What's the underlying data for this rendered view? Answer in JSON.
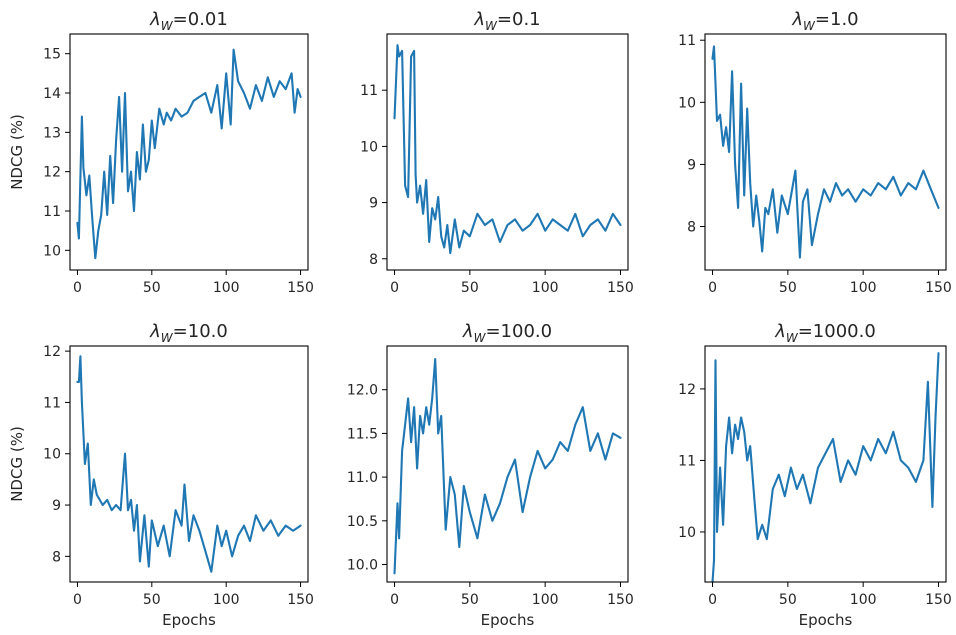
{
  "colors": {
    "line": "#1f77b4"
  },
  "chart_data": [
    {
      "type": "line",
      "title_prefix": "λ",
      "title_sub": "W",
      "title_value": "=0.01",
      "xlabel": "",
      "ylabel": "NDCG (%)",
      "xlim": [
        -5,
        155
      ],
      "ylim": [
        9.5,
        15.5
      ],
      "xticks": [
        "0",
        "50",
        "100",
        "150"
      ],
      "yticks": [
        "10",
        "11",
        "12",
        "13",
        "14",
        "15"
      ],
      "series": [
        {
          "x": [
            0,
            1,
            3,
            4,
            6,
            8,
            10,
            12,
            14,
            16,
            18,
            20,
            22,
            24,
            26,
            28,
            30,
            32,
            34,
            36,
            38,
            40,
            42,
            44,
            46,
            48,
            50,
            52,
            55,
            58,
            60,
            63,
            66,
            70,
            74,
            78,
            82,
            86,
            90,
            94,
            97,
            100,
            103,
            105,
            108,
            112,
            116,
            120,
            124,
            128,
            132,
            136,
            140,
            144,
            146,
            148,
            150
          ],
          "y": [
            10.7,
            10.3,
            13.4,
            12.1,
            11.4,
            11.9,
            10.8,
            9.8,
            10.5,
            10.9,
            12.0,
            10.9,
            12.4,
            11.2,
            12.8,
            13.9,
            12.0,
            14.0,
            11.5,
            12.0,
            11.0,
            12.5,
            11.8,
            13.2,
            12.0,
            12.3,
            13.3,
            12.6,
            13.6,
            13.2,
            13.5,
            13.3,
            13.6,
            13.4,
            13.5,
            13.8,
            13.9,
            14.0,
            13.5,
            14.2,
            13.1,
            14.5,
            13.2,
            15.1,
            14.3,
            14.0,
            13.6,
            14.2,
            13.8,
            14.4,
            13.9,
            14.3,
            14.1,
            14.5,
            13.5,
            14.1,
            13.9
          ]
        }
      ]
    },
    {
      "type": "line",
      "title_prefix": "λ",
      "title_sub": "W",
      "title_value": "=0.1",
      "xlabel": "",
      "ylabel": "",
      "xlim": [
        -5,
        155
      ],
      "ylim": [
        7.8,
        12.0
      ],
      "xticks": [
        "0",
        "50",
        "100",
        "150"
      ],
      "yticks": [
        "8",
        "9",
        "10",
        "11"
      ],
      "series": [
        {
          "x": [
            0,
            2,
            3,
            5,
            7,
            9,
            11,
            13,
            14,
            15,
            17,
            19,
            21,
            23,
            25,
            27,
            29,
            31,
            33,
            35,
            37,
            40,
            43,
            46,
            50,
            55,
            60,
            65,
            70,
            75,
            80,
            85,
            90,
            95,
            100,
            105,
            110,
            115,
            120,
            125,
            130,
            135,
            140,
            145,
            150
          ],
          "y": [
            10.5,
            11.8,
            11.6,
            11.7,
            9.3,
            9.1,
            11.6,
            11.7,
            9.5,
            9.0,
            9.3,
            8.8,
            9.4,
            8.3,
            8.9,
            8.7,
            9.1,
            8.4,
            8.2,
            8.6,
            8.1,
            8.7,
            8.2,
            8.5,
            8.4,
            8.8,
            8.6,
            8.7,
            8.3,
            8.6,
            8.7,
            8.5,
            8.6,
            8.8,
            8.5,
            8.7,
            8.6,
            8.5,
            8.8,
            8.4,
            8.6,
            8.7,
            8.5,
            8.8,
            8.6
          ]
        }
      ]
    },
    {
      "type": "line",
      "title_prefix": "λ",
      "title_sub": "W",
      "title_value": "=1.0",
      "xlabel": "",
      "ylabel": "",
      "xlim": [
        -5,
        155
      ],
      "ylim": [
        7.3,
        11.1
      ],
      "xticks": [
        "0",
        "50",
        "100",
        "150"
      ],
      "yticks": [
        "8",
        "9",
        "10",
        "11"
      ],
      "series": [
        {
          "x": [
            0,
            1,
            3,
            5,
            7,
            9,
            11,
            13,
            15,
            17,
            19,
            21,
            23,
            25,
            27,
            29,
            31,
            33,
            35,
            37,
            40,
            43,
            46,
            50,
            55,
            58,
            60,
            63,
            66,
            70,
            74,
            78,
            82,
            86,
            90,
            95,
            100,
            105,
            110,
            115,
            120,
            125,
            130,
            135,
            140,
            145,
            150
          ],
          "y": [
            10.7,
            10.9,
            9.7,
            9.8,
            9.3,
            9.6,
            9.2,
            10.5,
            9.0,
            8.3,
            10.3,
            8.5,
            9.9,
            8.7,
            8.0,
            8.5,
            8.1,
            7.6,
            8.3,
            8.2,
            8.6,
            7.9,
            8.5,
            8.2,
            8.9,
            7.5,
            8.4,
            8.6,
            7.7,
            8.2,
            8.6,
            8.4,
            8.7,
            8.5,
            8.6,
            8.4,
            8.6,
            8.5,
            8.7,
            8.6,
            8.8,
            8.5,
            8.7,
            8.6,
            8.9,
            8.6,
            8.3
          ]
        }
      ]
    },
    {
      "type": "line",
      "title_prefix": "λ",
      "title_sub": "W",
      "title_value": "=10.0",
      "xlabel": "Epochs",
      "ylabel": "NDCG (%)",
      "xlim": [
        -5,
        155
      ],
      "ylim": [
        7.5,
        12.1
      ],
      "xticks": [
        "0",
        "50",
        "100",
        "150"
      ],
      "yticks": [
        "8",
        "9",
        "10",
        "11",
        "12"
      ],
      "series": [
        {
          "x": [
            0,
            1,
            2,
            3,
            5,
            7,
            9,
            11,
            13,
            15,
            17,
            20,
            23,
            26,
            29,
            32,
            34,
            36,
            38,
            40,
            42,
            45,
            48,
            50,
            54,
            58,
            62,
            66,
            70,
            72,
            75,
            78,
            82,
            86,
            90,
            94,
            97,
            100,
            104,
            108,
            112,
            116,
            120,
            125,
            130,
            135,
            140,
            145,
            150
          ],
          "y": [
            11.4,
            11.4,
            11.9,
            11.0,
            9.8,
            10.2,
            9.0,
            9.5,
            9.2,
            9.1,
            9.0,
            9.1,
            8.9,
            9.0,
            8.9,
            10.0,
            8.9,
            9.1,
            8.5,
            9.0,
            7.9,
            8.8,
            7.8,
            8.7,
            8.2,
            8.6,
            8.0,
            8.9,
            8.6,
            9.4,
            8.3,
            8.8,
            8.5,
            8.1,
            7.7,
            8.6,
            8.2,
            8.5,
            8.0,
            8.4,
            8.6,
            8.3,
            8.8,
            8.5,
            8.7,
            8.4,
            8.6,
            8.5,
            8.6
          ]
        }
      ]
    },
    {
      "type": "line",
      "title_prefix": "λ",
      "title_sub": "W",
      "title_value": "=100.0",
      "xlabel": "Epochs",
      "ylabel": "",
      "xlim": [
        -5,
        155
      ],
      "ylim": [
        9.8,
        12.5
      ],
      "xticks": [
        "0",
        "50",
        "100",
        "150"
      ],
      "yticks": [
        "10.0",
        "10.5",
        "11.0",
        "11.5",
        "12.0"
      ],
      "series": [
        {
          "x": [
            0,
            2,
            3,
            5,
            7,
            9,
            11,
            13,
            15,
            17,
            19,
            21,
            23,
            25,
            27,
            29,
            31,
            34,
            37,
            40,
            43,
            46,
            50,
            55,
            60,
            65,
            70,
            75,
            80,
            85,
            90,
            95,
            100,
            105,
            110,
            115,
            120,
            125,
            130,
            135,
            140,
            145,
            150
          ],
          "y": [
            9.9,
            10.7,
            10.3,
            11.3,
            11.6,
            11.9,
            11.4,
            11.8,
            11.1,
            11.7,
            11.5,
            11.8,
            11.6,
            11.9,
            12.35,
            11.5,
            11.7,
            10.4,
            11.0,
            10.8,
            10.2,
            10.9,
            10.6,
            10.3,
            10.8,
            10.5,
            10.7,
            11.0,
            11.2,
            10.6,
            11.0,
            11.3,
            11.1,
            11.2,
            11.4,
            11.3,
            11.6,
            11.8,
            11.3,
            11.5,
            11.2,
            11.5,
            11.45
          ]
        }
      ]
    },
    {
      "type": "line",
      "title_prefix": "λ",
      "title_sub": "W",
      "title_value": "=1000.0",
      "xlabel": "Epochs",
      "ylabel": "",
      "xlim": [
        -5,
        155
      ],
      "ylim": [
        9.3,
        12.6
      ],
      "xticks": [
        "0",
        "50",
        "100",
        "150"
      ],
      "yticks": [
        "10",
        "11",
        "12"
      ],
      "series": [
        {
          "x": [
            0,
            1,
            2,
            3,
            5,
            7,
            9,
            11,
            13,
            15,
            17,
            19,
            21,
            23,
            25,
            28,
            30,
            33,
            36,
            40,
            44,
            48,
            52,
            56,
            60,
            65,
            70,
            75,
            80,
            85,
            90,
            95,
            100,
            105,
            110,
            115,
            120,
            125,
            130,
            135,
            140,
            143,
            146,
            148,
            150
          ],
          "y": [
            9.3,
            9.6,
            12.4,
            10.0,
            10.9,
            10.1,
            11.2,
            11.6,
            11.1,
            11.5,
            11.3,
            11.6,
            11.4,
            11.0,
            11.2,
            10.4,
            9.9,
            10.1,
            9.9,
            10.6,
            10.8,
            10.5,
            10.9,
            10.6,
            10.8,
            10.4,
            10.9,
            11.1,
            11.3,
            10.7,
            11.0,
            10.8,
            11.2,
            11.0,
            11.3,
            11.1,
            11.4,
            11.0,
            10.9,
            10.7,
            11.0,
            12.1,
            10.35,
            11.6,
            12.5
          ]
        }
      ]
    }
  ]
}
